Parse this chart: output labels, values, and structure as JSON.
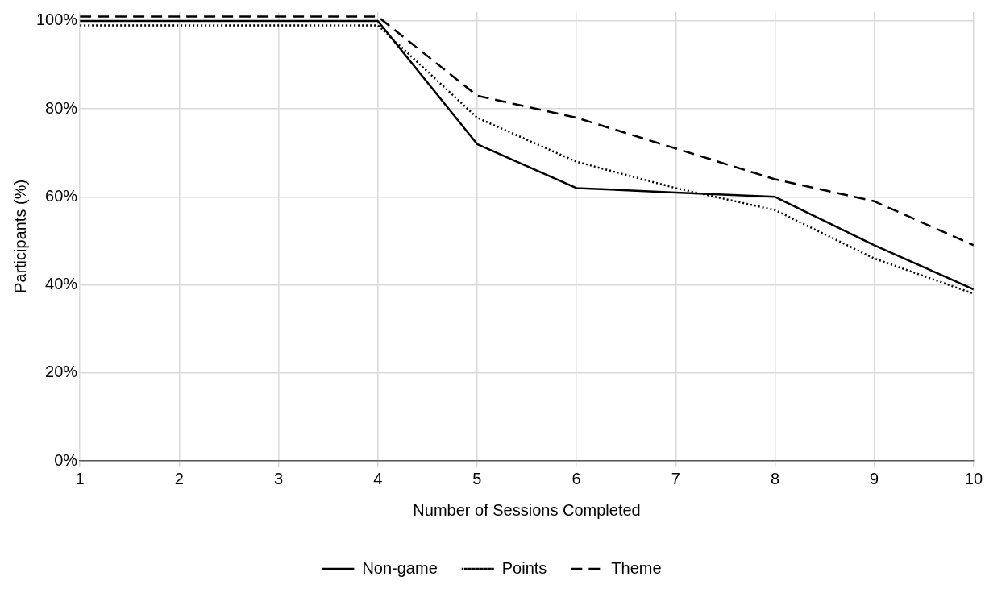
{
  "chart_data": {
    "type": "line",
    "xlabel": "Number of Sessions Completed",
    "ylabel": "Participants (%)",
    "x": [
      1,
      2,
      3,
      4,
      5,
      6,
      7,
      8,
      9,
      10
    ],
    "xlim": [
      1,
      10
    ],
    "xticks": [
      1,
      2,
      3,
      4,
      5,
      6,
      7,
      8,
      9,
      10
    ],
    "ylim": [
      0,
      102
    ],
    "yticks": [
      {
        "value": 0,
        "label": "0%"
      },
      {
        "value": 20,
        "label": "20%"
      },
      {
        "value": 40,
        "label": "40%"
      },
      {
        "value": 60,
        "label": "60%"
      },
      {
        "value": 80,
        "label": "80%"
      },
      {
        "value": 100,
        "label": "100%"
      }
    ],
    "grid": true,
    "legend": "bottom",
    "marker": "none",
    "series": [
      {
        "name": "Non-game",
        "color": "#000000",
        "line_style": "solid",
        "values": [
          100,
          100,
          100,
          100,
          72,
          62,
          61,
          60,
          49,
          39
        ]
      },
      {
        "name": "Points",
        "color": "#000000",
        "line_style": "dotted",
        "values": [
          99,
          99,
          99,
          99,
          78,
          68,
          62,
          57,
          46,
          38
        ]
      },
      {
        "name": "Theme",
        "color": "#000000",
        "line_style": "dashed",
        "values": [
          101,
          101,
          101,
          101,
          83,
          78,
          71,
          64,
          59,
          49
        ]
      }
    ]
  }
}
